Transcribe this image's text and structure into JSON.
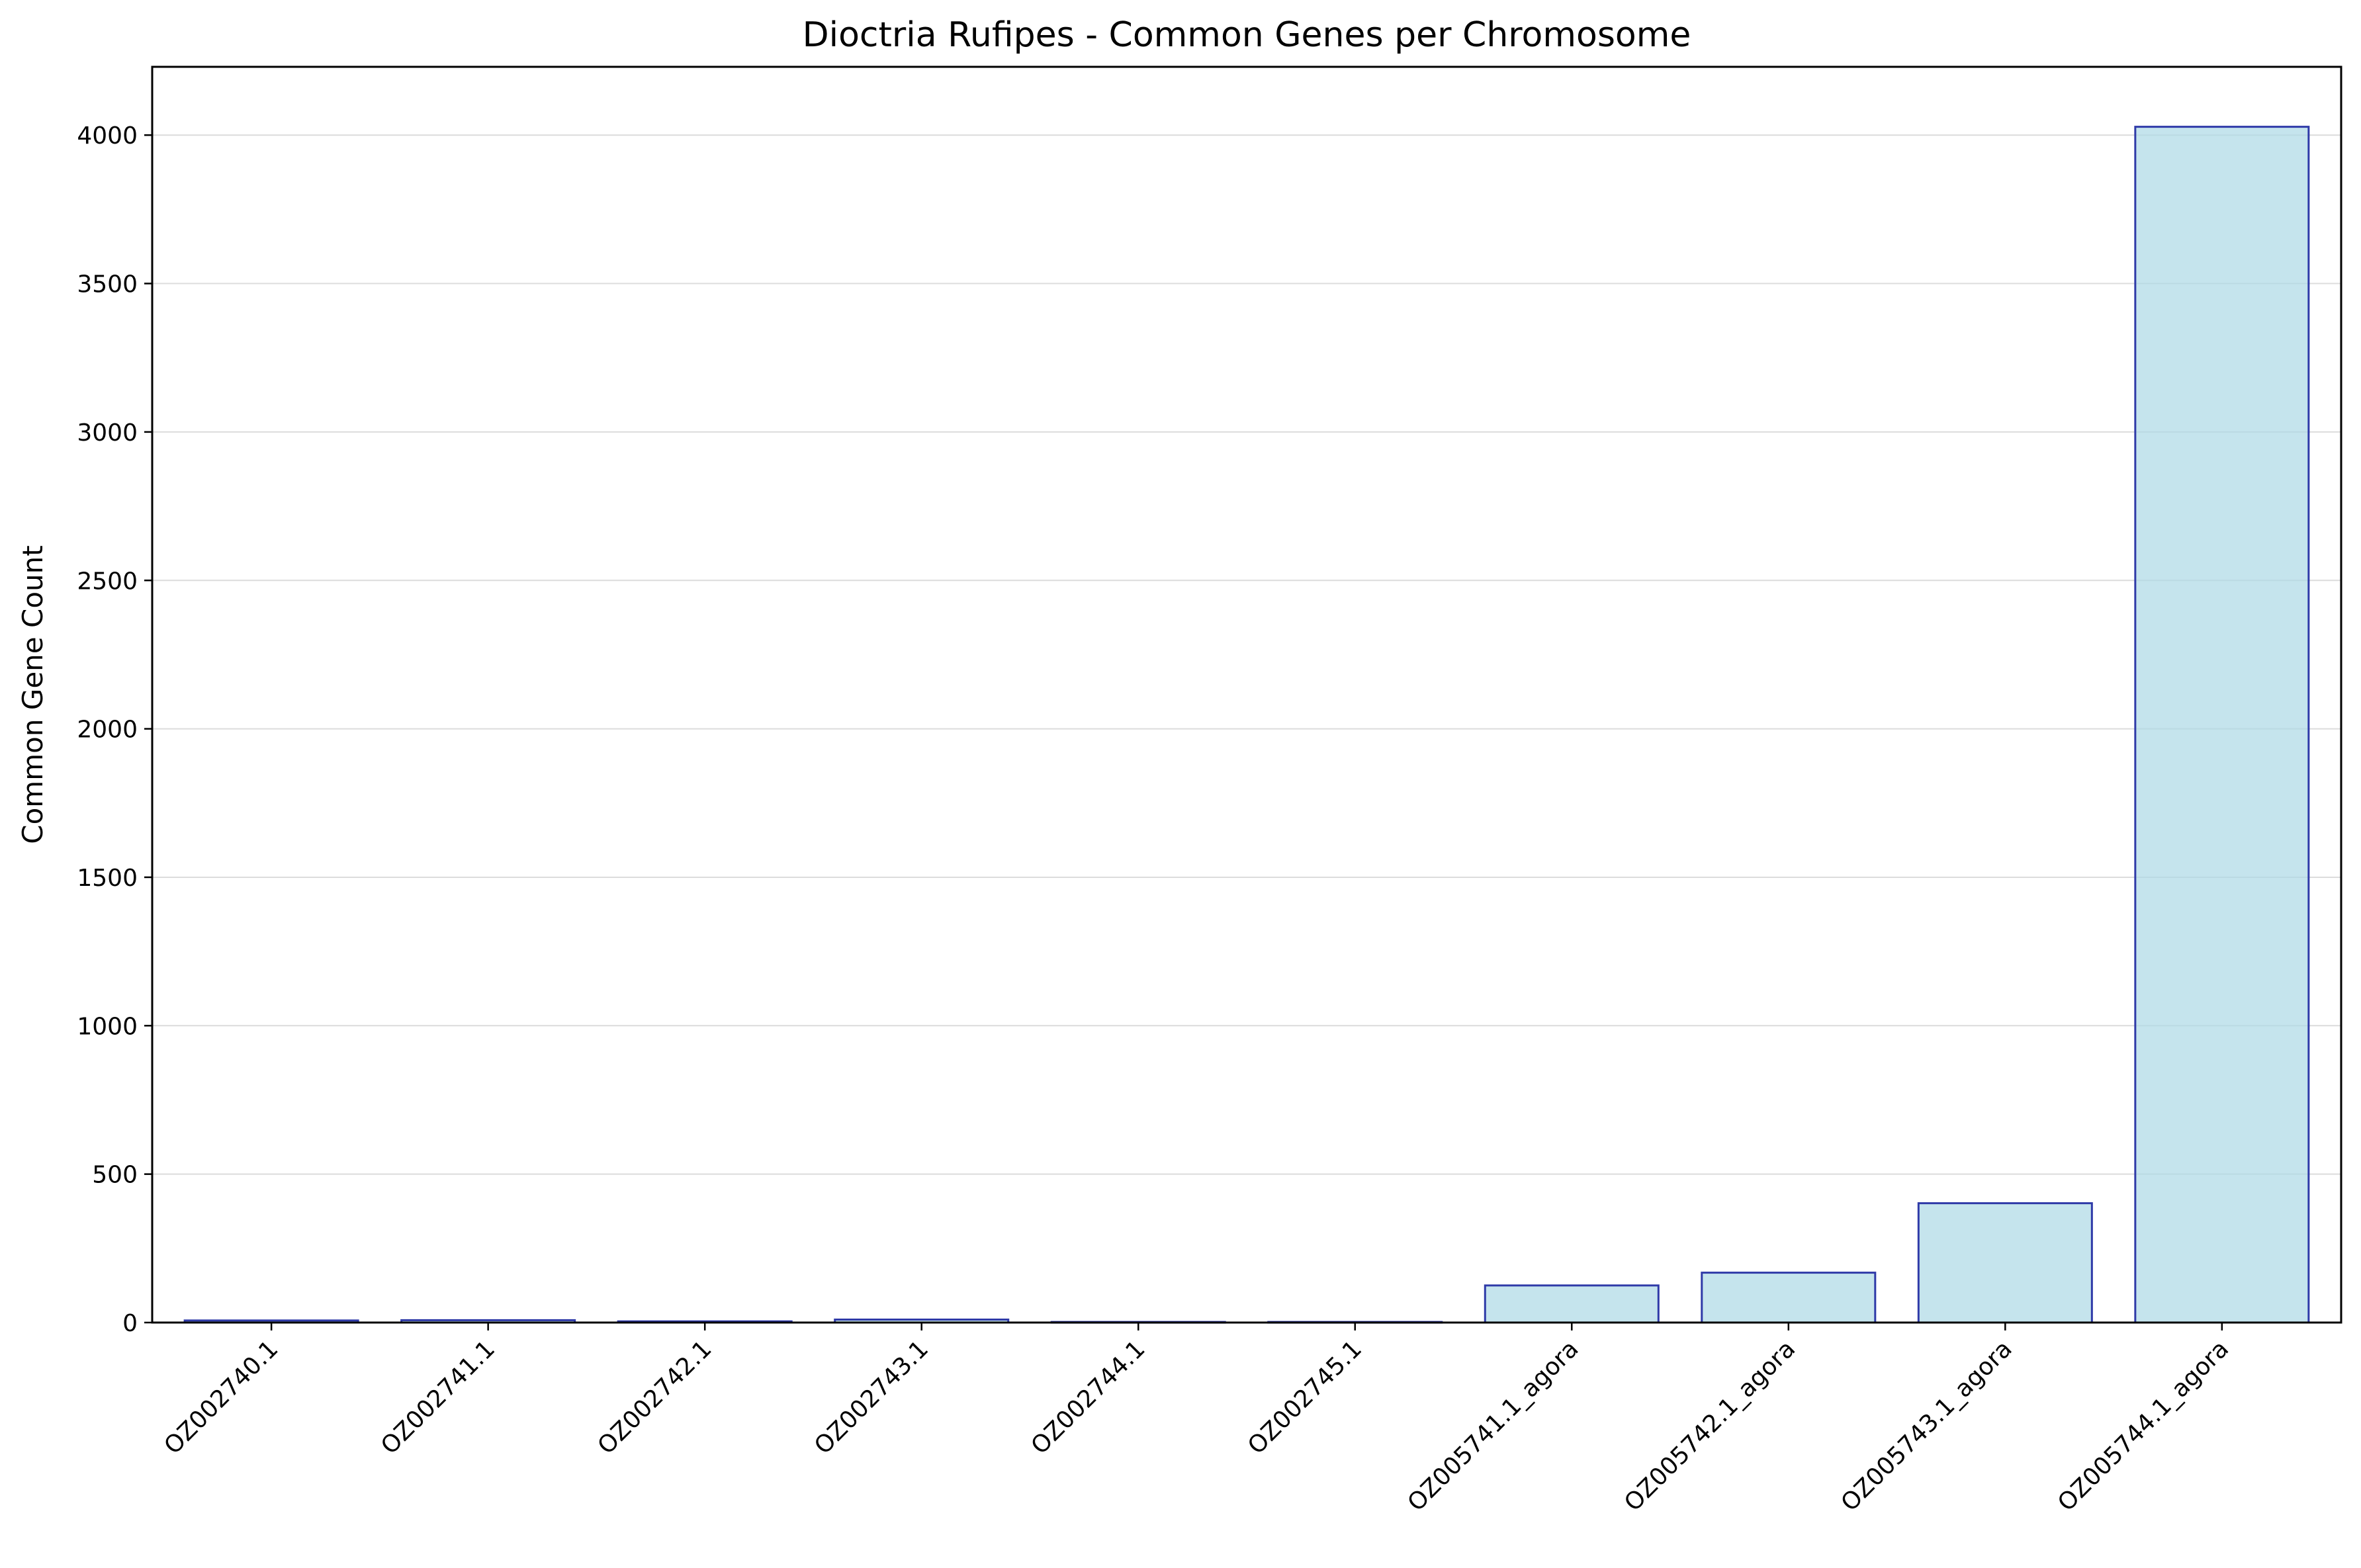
{
  "chart_data": {
    "type": "bar",
    "title": "Dioctria Rufipes - Common Genes per Chromosome",
    "xlabel": "",
    "ylabel": "Common Gene Count",
    "categories": [
      "OZ002740.1",
      "OZ002741.1",
      "OZ002742.1",
      "OZ002743.1",
      "OZ002744.1",
      "OZ002745.1",
      "OZ005741.1_agora",
      "OZ005742.1_agora",
      "OZ005743.1_agora",
      "OZ005744.1_agora"
    ],
    "values": [
      7,
      8,
      4,
      10,
      2,
      2,
      125,
      168,
      402,
      4028
    ],
    "ylim": [
      0,
      4230
    ],
    "yticks": [
      0,
      500,
      1000,
      1500,
      2000,
      2500,
      3000,
      3500,
      4000
    ],
    "grid": "horizontal",
    "bar_fill": "#add8e6",
    "bar_edge": "#2f3aa8"
  }
}
